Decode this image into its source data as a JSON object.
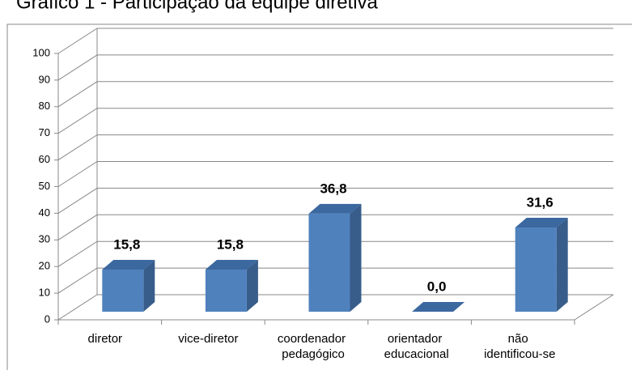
{
  "chart_data": {
    "type": "bar3d",
    "title": "Gráfico 1 - Participação da equipe diretiva",
    "categories": [
      "diretor",
      "vice-diretor",
      "coordenador pedagógico",
      "orientador educacional",
      "não identificou-se"
    ],
    "values": [
      15.8,
      15.8,
      36.8,
      0.0,
      31.6
    ],
    "value_labels": [
      "15,8",
      "15,8",
      "36,8",
      "0,0",
      "31,6"
    ],
    "color": "#4f81bd",
    "ylim": [
      0,
      100
    ],
    "yticks": [
      0,
      10,
      20,
      30,
      40,
      50,
      60,
      70,
      80,
      90,
      100
    ],
    "grid": true
  }
}
